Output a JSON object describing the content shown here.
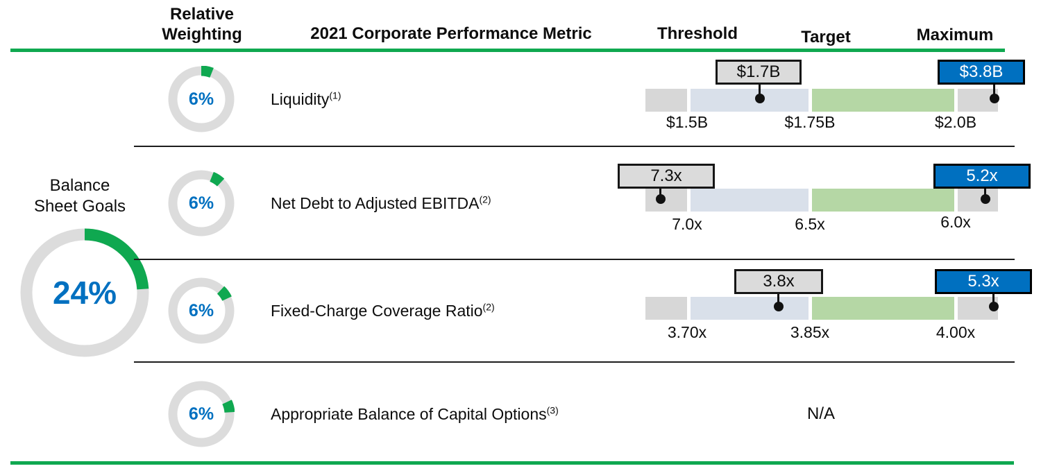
{
  "header": {
    "weighting_line1": "Relative",
    "weighting_line2": "Weighting",
    "metric": "2021 Corporate Performance Metric",
    "threshold": "Threshold",
    "target": "Target",
    "maximum": "Maximum"
  },
  "group": {
    "label_line1": "Balance",
    "label_line2": "Sheet Goals",
    "weight": "24%",
    "donut": {
      "frac": 0.24,
      "start": 0
    }
  },
  "rows": [
    {
      "weight": "6%",
      "metric": "Liquidity",
      "footnote": "(1)",
      "donut": {
        "frac": 0.06,
        "start": 0
      },
      "ticks": [
        "$1.5B",
        "$1.75B",
        "$2.0B"
      ],
      "gray_callout": "$1.7B",
      "blue_callout": "$3.8B"
    },
    {
      "weight": "6%",
      "metric": "Net Debt to Adjusted EBITDA",
      "footnote": "(2)",
      "donut": {
        "frac": 0.06,
        "start": 0.06
      },
      "ticks": [
        "7.0x",
        "6.5x",
        "6.0x"
      ],
      "gray_callout": "7.3x",
      "blue_callout": "5.2x"
    },
    {
      "weight": "6%",
      "metric": "Fixed-Charge Coverage Ratio",
      "footnote": "(2)",
      "donut": {
        "frac": 0.06,
        "start": 0.12
      },
      "ticks": [
        "3.70x",
        "3.85x",
        "4.00x"
      ],
      "gray_callout": "3.8x",
      "blue_callout": "5.3x"
    },
    {
      "weight": "6%",
      "metric": "Appropriate Balance of Capital Options",
      "footnote": "(3)",
      "donut": {
        "frac": 0.06,
        "start": 0.18
      },
      "value": "N/A"
    }
  ],
  "colors": {
    "accent_green": "#0fa850",
    "bar_gray": "#d7d7d7",
    "bar_light_blue": "#d9e0ea",
    "bar_light_green": "#b5d7a5",
    "callout_gray_fill": "#dbdbdb",
    "callout_blue_fill": "#0070c0",
    "weight_text_blue": "#0070c0",
    "donut_track_gray": "#dcdcdc"
  },
  "chart_data": {
    "type": "table",
    "title": "Balance Sheet Goals — 2021 Corporate Performance Metrics",
    "group": {
      "label": "Balance Sheet Goals",
      "relative_weighting_pct": 24
    },
    "columns": [
      "Relative Weighting",
      "2021 Corporate Performance Metric",
      "Threshold",
      "Target",
      "Maximum"
    ],
    "rows": [
      {
        "relative_weighting_pct": 6,
        "metric": "Liquidity",
        "footnote": 1,
        "threshold": "$1.5B",
        "target": "$1.75B",
        "maximum": "$2.0B",
        "gray_callout_value": "$1.7B",
        "blue_callout_value": "$3.8B"
      },
      {
        "relative_weighting_pct": 6,
        "metric": "Net Debt to Adjusted EBITDA",
        "footnote": 2,
        "threshold": "7.0x",
        "target": "6.5x",
        "maximum": "6.0x",
        "gray_callout_value": "7.3x",
        "blue_callout_value": "5.2x"
      },
      {
        "relative_weighting_pct": 6,
        "metric": "Fixed-Charge Coverage Ratio",
        "footnote": 2,
        "threshold": "3.70x",
        "target": "3.85x",
        "maximum": "4.00x",
        "gray_callout_value": "3.8x",
        "blue_callout_value": "5.3x"
      },
      {
        "relative_weighting_pct": 6,
        "metric": "Appropriate Balance of Capital Options",
        "footnote": 3,
        "threshold": "N/A",
        "target": "N/A",
        "maximum": "N/A"
      }
    ],
    "donut_wedge_starts_pct": [
      0,
      6,
      12,
      18
    ],
    "legend_position": "none",
    "grid": false
  }
}
